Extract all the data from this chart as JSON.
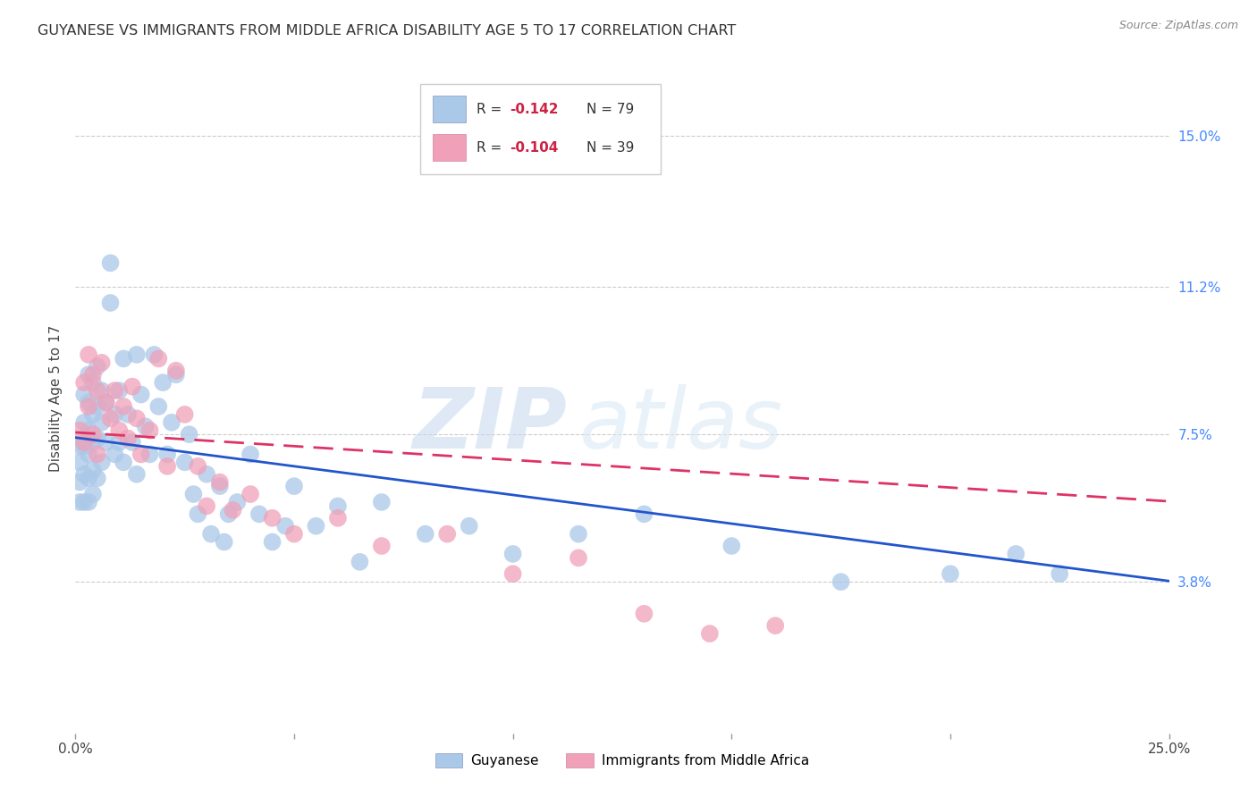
{
  "title": "GUYANESE VS IMMIGRANTS FROM MIDDLE AFRICA DISABILITY AGE 5 TO 17 CORRELATION CHART",
  "source": "Source: ZipAtlas.com",
  "ylabel": "Disability Age 5 to 17",
  "yaxis_labels": [
    "15.0%",
    "11.2%",
    "7.5%",
    "3.8%"
  ],
  "yaxis_values": [
    0.15,
    0.112,
    0.075,
    0.038
  ],
  "xmin": 0.0,
  "xmax": 0.25,
  "ymin": 0.0,
  "ymax": 0.168,
  "series1_label": "Guyanese",
  "series1_color": "#aac8e8",
  "series1_line_color": "#2255cc",
  "series1_R": -0.142,
  "series1_N": 79,
  "series2_label": "Immigrants from Middle Africa",
  "series2_color": "#f0a0b8",
  "series2_line_color": "#dd3366",
  "series2_R": -0.104,
  "series2_N": 39,
  "watermark_zip": "ZIP",
  "watermark_atlas": "atlas",
  "guyanese_x": [
    0.001,
    0.001,
    0.001,
    0.001,
    0.002,
    0.002,
    0.002,
    0.002,
    0.002,
    0.003,
    0.003,
    0.003,
    0.003,
    0.003,
    0.003,
    0.004,
    0.004,
    0.004,
    0.004,
    0.004,
    0.005,
    0.005,
    0.005,
    0.005,
    0.006,
    0.006,
    0.006,
    0.007,
    0.007,
    0.008,
    0.008,
    0.009,
    0.009,
    0.01,
    0.01,
    0.011,
    0.011,
    0.012,
    0.013,
    0.014,
    0.014,
    0.015,
    0.016,
    0.017,
    0.018,
    0.019,
    0.02,
    0.021,
    0.022,
    0.023,
    0.025,
    0.026,
    0.027,
    0.028,
    0.03,
    0.031,
    0.033,
    0.034,
    0.035,
    0.037,
    0.04,
    0.042,
    0.045,
    0.048,
    0.05,
    0.055,
    0.06,
    0.065,
    0.07,
    0.08,
    0.09,
    0.1,
    0.115,
    0.13,
    0.15,
    0.175,
    0.2,
    0.215,
    0.225
  ],
  "guyanese_y": [
    0.072,
    0.068,
    0.063,
    0.058,
    0.085,
    0.078,
    0.072,
    0.065,
    0.058,
    0.09,
    0.083,
    0.076,
    0.07,
    0.064,
    0.058,
    0.088,
    0.08,
    0.073,
    0.066,
    0.06,
    0.092,
    0.082,
    0.074,
    0.064,
    0.086,
    0.078,
    0.068,
    0.083,
    0.073,
    0.118,
    0.108,
    0.08,
    0.07,
    0.086,
    0.073,
    0.094,
    0.068,
    0.08,
    0.073,
    0.095,
    0.065,
    0.085,
    0.077,
    0.07,
    0.095,
    0.082,
    0.088,
    0.07,
    0.078,
    0.09,
    0.068,
    0.075,
    0.06,
    0.055,
    0.065,
    0.05,
    0.062,
    0.048,
    0.055,
    0.058,
    0.07,
    0.055,
    0.048,
    0.052,
    0.062,
    0.052,
    0.057,
    0.043,
    0.058,
    0.05,
    0.052,
    0.045,
    0.05,
    0.055,
    0.047,
    0.038,
    0.04,
    0.045,
    0.04
  ],
  "middle_africa_x": [
    0.001,
    0.002,
    0.002,
    0.003,
    0.003,
    0.004,
    0.004,
    0.005,
    0.005,
    0.006,
    0.007,
    0.008,
    0.009,
    0.01,
    0.011,
    0.012,
    0.013,
    0.014,
    0.015,
    0.017,
    0.019,
    0.021,
    0.023,
    0.025,
    0.028,
    0.03,
    0.033,
    0.036,
    0.04,
    0.045,
    0.05,
    0.06,
    0.07,
    0.085,
    0.1,
    0.115,
    0.13,
    0.145,
    0.16
  ],
  "middle_africa_y": [
    0.076,
    0.088,
    0.073,
    0.095,
    0.082,
    0.09,
    0.075,
    0.086,
    0.07,
    0.093,
    0.083,
    0.079,
    0.086,
    0.076,
    0.082,
    0.074,
    0.087,
    0.079,
    0.07,
    0.076,
    0.094,
    0.067,
    0.091,
    0.08,
    0.067,
    0.057,
    0.063,
    0.056,
    0.06,
    0.054,
    0.05,
    0.054,
    0.047,
    0.05,
    0.04,
    0.044,
    0.03,
    0.025,
    0.027
  ],
  "trend1_start_y": 0.0742,
  "trend1_end_y": 0.0382,
  "trend2_start_y": 0.0755,
  "trend2_end_y": 0.0582
}
